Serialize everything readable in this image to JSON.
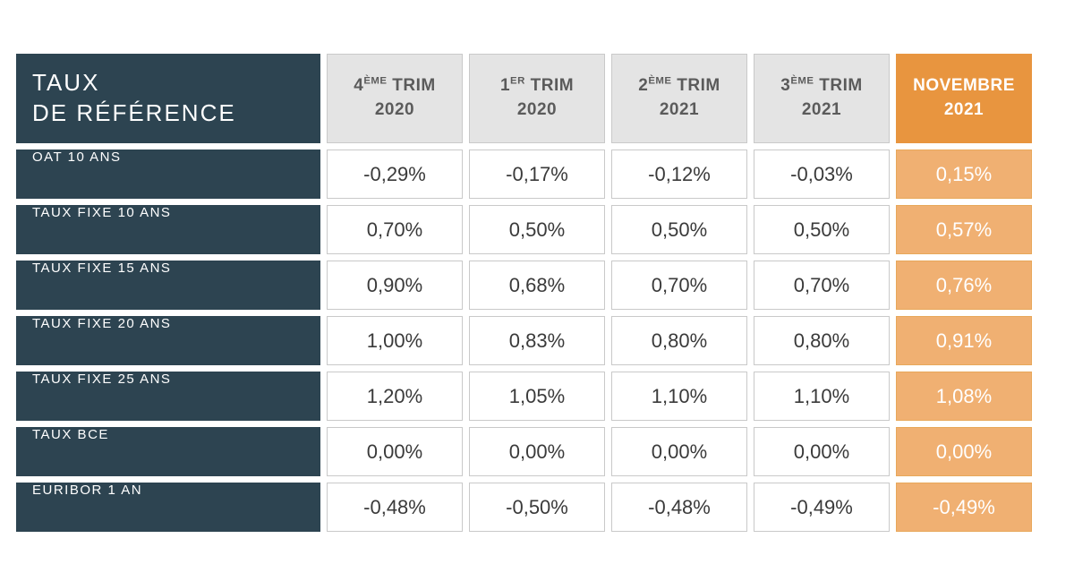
{
  "table": {
    "type": "table",
    "colors": {
      "label_bg": "#2d4451",
      "label_text": "#ffffff",
      "header_bg": "#e4e4e4",
      "header_text": "#5b5b5b",
      "cell_bg": "#ffffff",
      "cell_text": "#3a3a3a",
      "cell_border": "#c9c9c9",
      "highlight_header_bg": "#e8953f",
      "highlight_cell_bg": "#f0b072",
      "highlight_text": "#ffffff"
    },
    "corner_label_line1": "TAUX",
    "corner_label_line2": "DE RÉFÉRENCE",
    "columns": [
      {
        "ord_prefix": "4",
        "ord_suffix": "ÈME",
        "period": "TRIM",
        "year": "2020",
        "highlight": false
      },
      {
        "ord_prefix": "1",
        "ord_suffix": "ER",
        "period": "TRIM",
        "year": "2020",
        "highlight": false
      },
      {
        "ord_prefix": "2",
        "ord_suffix": "ÈME",
        "period": "TRIM",
        "year": "2021",
        "highlight": false
      },
      {
        "ord_prefix": "3",
        "ord_suffix": "ÈME",
        "period": "TRIM",
        "year": "2021",
        "highlight": false
      },
      {
        "ord_prefix": "",
        "ord_suffix": "",
        "period": "NOVEMBRE",
        "year": "2021",
        "highlight": true
      }
    ],
    "rows": [
      {
        "label": "OAT 10 ANS",
        "values": [
          "-0,29%",
          "-0,17%",
          "-0,12%",
          "-0,03%",
          "0,15%"
        ]
      },
      {
        "label": "TAUX FIXE 10 ANS",
        "values": [
          "0,70%",
          "0,50%",
          "0,50%",
          "0,50%",
          "0,57%"
        ]
      },
      {
        "label": "TAUX FIXE 15 ANS",
        "values": [
          "0,90%",
          "0,68%",
          "0,70%",
          "0,70%",
          "0,76%"
        ]
      },
      {
        "label": "TAUX FIXE 20 ANS",
        "values": [
          "1,00%",
          "0,83%",
          "0,80%",
          "0,80%",
          "0,91%"
        ]
      },
      {
        "label": "TAUX FIXE 25 ANS",
        "values": [
          "1,20%",
          "1,05%",
          "1,10%",
          "1,10%",
          "1,08%"
        ]
      },
      {
        "label": "TAUX BCE",
        "values": [
          "0,00%",
          "0,00%",
          "0,00%",
          "0,00%",
          "0,00%"
        ]
      },
      {
        "label": "EURIBOR 1 AN",
        "values": [
          "-0,48%",
          "-0,50%",
          "-0,48%",
          "-0,49%",
          "-0,49%"
        ]
      }
    ]
  }
}
